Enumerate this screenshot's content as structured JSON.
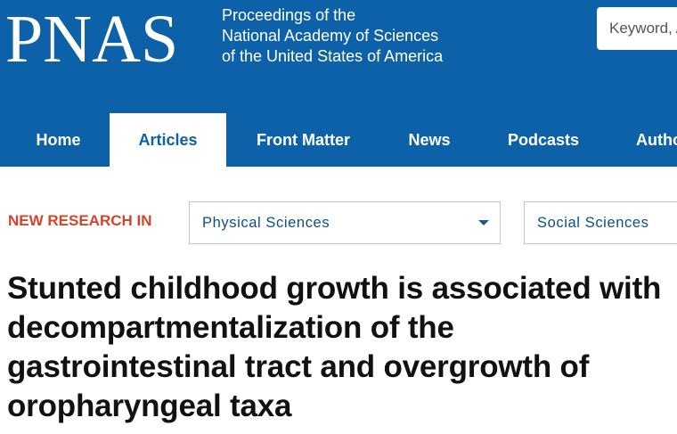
{
  "header": {
    "logo": "PNAS",
    "tagline": [
      "Proceedings of the",
      "National Academy of Sciences",
      "of the United States of America"
    ],
    "search_placeholder": "Keyword, Author, or DOI"
  },
  "nav": {
    "items": [
      {
        "label": "Home",
        "active": false
      },
      {
        "label": "Articles",
        "active": true
      },
      {
        "label": "Front Matter",
        "active": false
      },
      {
        "label": "News",
        "active": false
      },
      {
        "label": "Podcasts",
        "active": false
      },
      {
        "label": "Authors",
        "active": false
      }
    ]
  },
  "new_research": {
    "label": "NEW RESEARCH IN",
    "selects": [
      {
        "value": "Physical Sciences"
      },
      {
        "value": "Social Sciences"
      }
    ]
  },
  "article": {
    "title_lines": [
      "Stunted childhood growth is associated with",
      "decompartmentalization of the",
      "gastrointestinal tract and overgrowth of",
      "oropharyngeal taxa"
    ]
  },
  "colors": {
    "brand_blue": "#0c61a8",
    "accent_red": "#d2452a"
  }
}
